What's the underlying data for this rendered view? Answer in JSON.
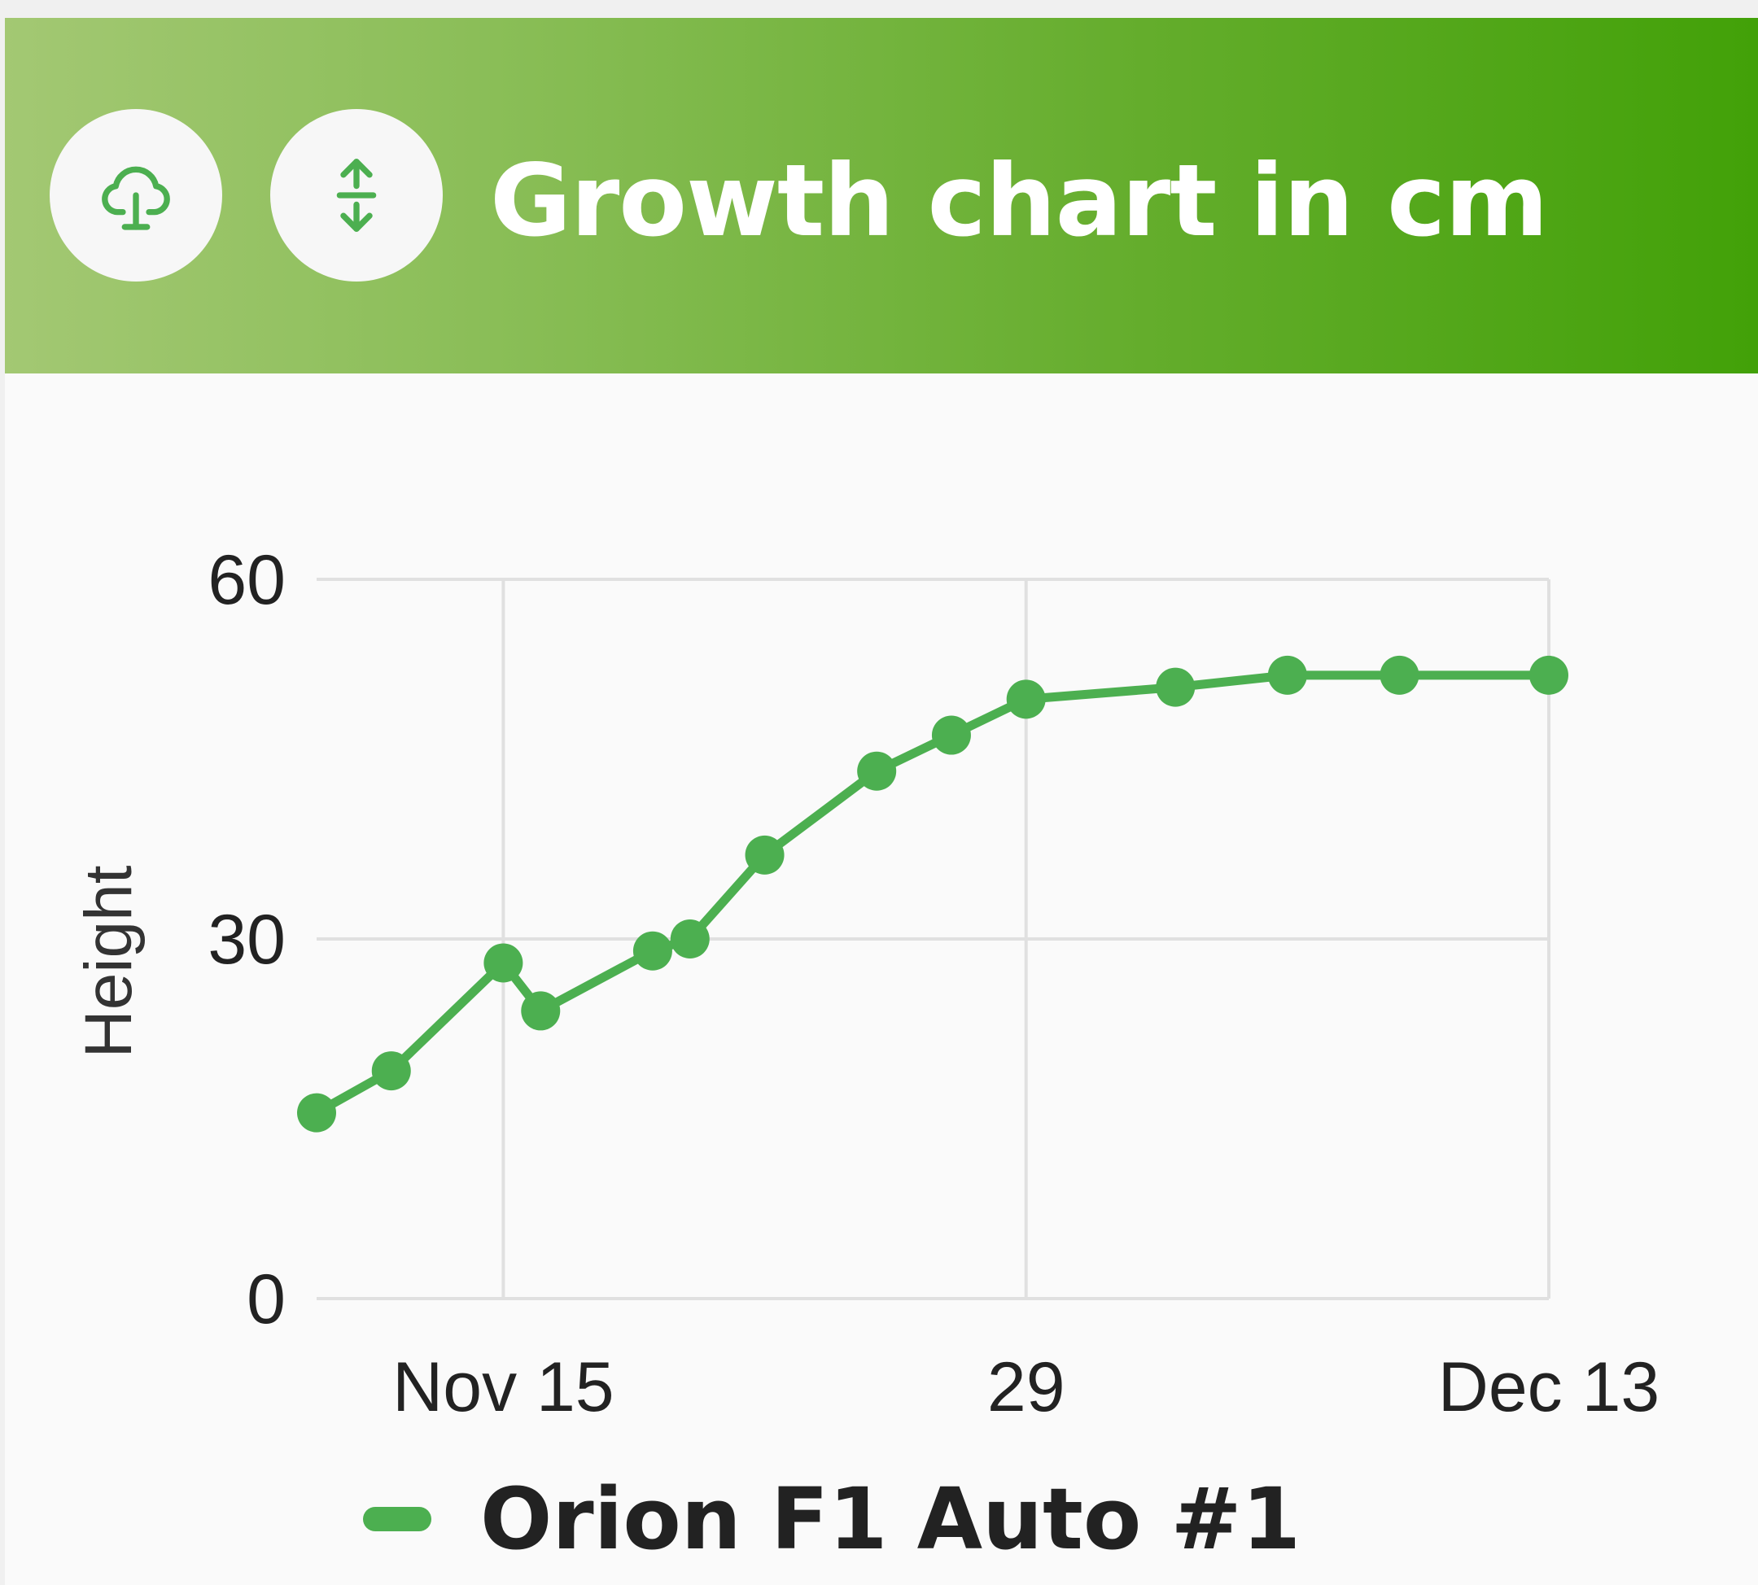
{
  "header": {
    "title": "Growth chart in cm",
    "buttons": [
      {
        "icon": "tree-icon"
      },
      {
        "icon": "vertical-arrows-icon"
      }
    ]
  },
  "colors": {
    "series": "#4caf50",
    "header_gradient_start": "#a3c873",
    "header_gradient_end": "#42a108",
    "grid": "#e0e0e0",
    "text": "#222222",
    "ylabel": "#333333"
  },
  "chart_data": {
    "type": "line",
    "ylabel": "Height",
    "ylim": [
      0,
      60
    ],
    "yticks": [
      0,
      30,
      60
    ],
    "xlim": [
      "2024-11-10",
      "2024-12-13"
    ],
    "xticks": [
      {
        "date": "2024-11-15",
        "label": "Nov 15"
      },
      {
        "date": "2024-11-29",
        "label": "29"
      },
      {
        "date": "2024-12-13",
        "label": "Dec 13"
      }
    ],
    "grid": true,
    "legend_position": "bottom",
    "series": [
      {
        "name": "Orion F1 Auto #1",
        "points": [
          {
            "x": "2024-11-10",
            "y": 15.5
          },
          {
            "x": "2024-11-12",
            "y": 19
          },
          {
            "x": "2024-11-15",
            "y": 28
          },
          {
            "x": "2024-11-16",
            "y": 24
          },
          {
            "x": "2024-11-19",
            "y": 29
          },
          {
            "x": "2024-11-20",
            "y": 30
          },
          {
            "x": "2024-11-22",
            "y": 37
          },
          {
            "x": "2024-11-25",
            "y": 44
          },
          {
            "x": "2024-11-27",
            "y": 47
          },
          {
            "x": "2024-11-29",
            "y": 50
          },
          {
            "x": "2024-12-03",
            "y": 51
          },
          {
            "x": "2024-12-06",
            "y": 52
          },
          {
            "x": "2024-12-09",
            "y": 52
          },
          {
            "x": "2024-12-13",
            "y": 52
          }
        ]
      }
    ]
  }
}
